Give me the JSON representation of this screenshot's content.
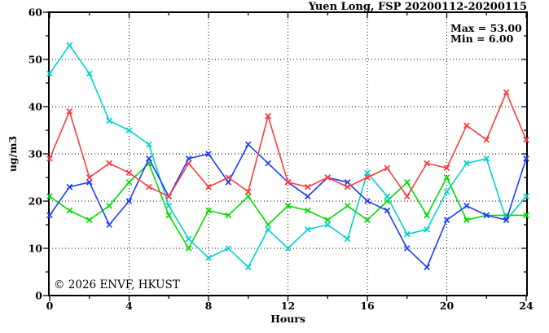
{
  "chart": {
    "title": "Yuen Long, FSP 20200112-20200115",
    "stats": {
      "max_label": "Max = 53.00",
      "min_label": "Min =  6.00"
    },
    "watermark": "© 2026 ENVF, HKUST",
    "xlabel": "Hours",
    "ylabel": "ug/m3"
  },
  "chart_data": {
    "type": "line",
    "title": "Yuen Long, FSP 20200112-20200115",
    "xlabel": "Hours",
    "ylabel": "ug/m3",
    "xlim": [
      0,
      24
    ],
    "ylim": [
      0,
      60
    ],
    "x_major_ticks": [
      0,
      4,
      8,
      12,
      16,
      20,
      24
    ],
    "x_minor_ticks": [
      2,
      6,
      10,
      14,
      18,
      22
    ],
    "y_major_ticks": [
      0,
      10,
      20,
      30,
      40,
      50,
      60
    ],
    "y_minor_ticks": [
      5,
      15,
      25,
      35,
      45,
      55
    ],
    "grid_x": [
      4,
      8,
      12,
      16,
      20
    ],
    "grid_y": [
      10,
      20,
      30,
      40,
      50
    ],
    "grid_style": "dotted",
    "legend_position": "none",
    "annotations": {
      "max": 53.0,
      "min": 6.0,
      "max_label": "Max = 53.00",
      "min_label": "Min =  6.00"
    },
    "x": [
      0,
      1,
      2,
      3,
      4,
      5,
      6,
      7,
      8,
      9,
      10,
      11,
      12,
      13,
      14,
      15,
      16,
      17,
      18,
      19,
      20,
      21,
      22,
      23,
      24
    ],
    "series": [
      {
        "name": "green-series",
        "color": "#00dc00",
        "marker": "x",
        "values": [
          21,
          18,
          16,
          19,
          24,
          28,
          17,
          10,
          18,
          17,
          21,
          15,
          19,
          18,
          16,
          19,
          16,
          20,
          24,
          17,
          25,
          16,
          17,
          17,
          17
        ]
      },
      {
        "name": "cyan-series",
        "color": "#00d2d2",
        "marker": "x",
        "values": [
          47,
          53,
          47,
          37,
          35,
          32,
          19,
          12,
          8,
          10,
          6,
          14,
          10,
          14,
          15,
          12,
          26,
          21,
          13,
          14,
          22,
          28,
          29,
          16,
          21
        ]
      },
      {
        "name": "blue-series",
        "color": "#1e3cff",
        "marker": "x",
        "values": [
          17,
          23,
          24,
          15,
          20,
          29,
          21,
          29,
          30,
          24,
          32,
          28,
          24,
          21,
          25,
          24,
          20,
          18,
          10,
          6,
          16,
          19,
          17,
          16,
          29
        ]
      },
      {
        "name": "red-series",
        "color": "#fa3c3c",
        "marker": "x",
        "values": [
          29,
          39,
          25,
          28,
          26,
          23,
          21,
          28,
          23,
          25,
          22,
          38,
          24,
          23,
          25,
          23,
          25,
          27,
          21,
          28,
          27,
          36,
          33,
          43,
          33
        ]
      }
    ],
    "colors": {
      "axis": "#000000",
      "grid": "#000000",
      "watermark": "#d8d8d8"
    },
    "watermark": "© 2026 ENVF, HKUST"
  }
}
